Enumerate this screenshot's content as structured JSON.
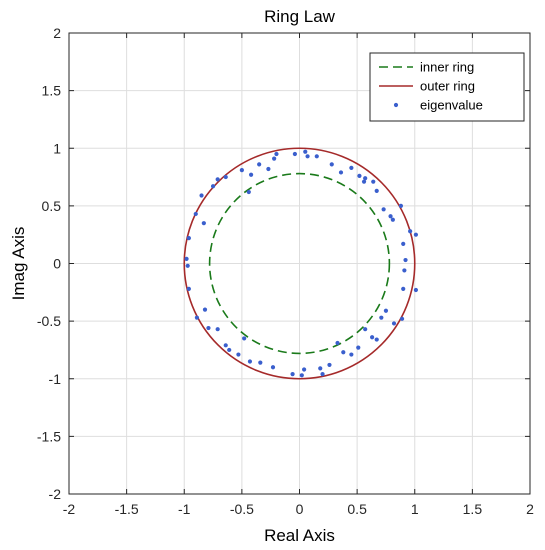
{
  "chart_data": {
    "type": "scatter",
    "title": "Ring Law",
    "xlabel": "Real Axis",
    "ylabel": "Imag Axis",
    "xlim": [
      -2,
      2
    ],
    "ylim": [
      -2,
      2
    ],
    "xticks": [
      -2,
      -1.5,
      -1,
      -0.5,
      0,
      0.5,
      1,
      1.5,
      2
    ],
    "yticks": [
      -2,
      -1.5,
      -1,
      -0.5,
      0,
      0.5,
      1,
      1.5,
      2
    ],
    "xtick_labels": [
      "-2",
      "-1.5",
      "-1",
      "-0.5",
      "0",
      "0.5",
      "1",
      "1.5",
      "2"
    ],
    "ytick_labels": [
      "-2",
      "-1.5",
      "-1",
      "-0.5",
      "0",
      "0.5",
      "1",
      "1.5",
      "2"
    ],
    "grid": true,
    "legend_position": "top-right",
    "series": [
      {
        "name": "inner ring",
        "kind": "circle",
        "radius": 0.78,
        "color": "#1a7a1a",
        "style": "dashed"
      },
      {
        "name": "outer ring",
        "kind": "circle",
        "radius": 1.0,
        "color": "#a52a2a",
        "style": "solid"
      },
      {
        "name": "eigenvalue",
        "kind": "points",
        "color": "#3a5fcd",
        "points": [
          [
            0.96,
            0.28
          ],
          [
            0.88,
            0.5
          ],
          [
            0.79,
            0.41
          ],
          [
            0.73,
            0.47
          ],
          [
            0.67,
            0.63
          ],
          [
            0.64,
            0.71
          ],
          [
            0.57,
            0.74
          ],
          [
            0.56,
            0.71
          ],
          [
            0.52,
            0.76
          ],
          [
            0.45,
            0.83
          ],
          [
            0.36,
            0.79
          ],
          [
            0.28,
            0.86
          ],
          [
            0.15,
            0.93
          ],
          [
            0.05,
            0.97
          ],
          [
            0.07,
            0.93
          ],
          [
            -0.04,
            0.95
          ],
          [
            -0.22,
            0.91
          ],
          [
            -0.27,
            0.82
          ],
          [
            -0.35,
            0.86
          ],
          [
            -0.42,
            0.77
          ],
          [
            -0.5,
            0.81
          ],
          [
            -0.44,
            0.62
          ],
          [
            -0.64,
            0.75
          ],
          [
            -0.71,
            0.73
          ],
          [
            -0.75,
            0.67
          ],
          [
            -0.85,
            0.59
          ],
          [
            -0.9,
            0.43
          ],
          [
            -0.83,
            0.35
          ],
          [
            -0.96,
            0.22
          ],
          [
            -0.98,
            0.04
          ],
          [
            -0.97,
            -0.02
          ],
          [
            -0.96,
            -0.22
          ],
          [
            -0.89,
            -0.47
          ],
          [
            -0.82,
            -0.4
          ],
          [
            -0.79,
            -0.56
          ],
          [
            -0.71,
            -0.57
          ],
          [
            -0.64,
            -0.71
          ],
          [
            -0.61,
            -0.75
          ],
          [
            -0.53,
            -0.79
          ],
          [
            -0.48,
            -0.65
          ],
          [
            -0.43,
            -0.85
          ],
          [
            -0.34,
            -0.86
          ],
          [
            -0.23,
            -0.9
          ],
          [
            -0.06,
            -0.96
          ],
          [
            0.02,
            -0.97
          ],
          [
            0.04,
            -0.92
          ],
          [
            0.18,
            -0.91
          ],
          [
            0.26,
            -0.88
          ],
          [
            0.33,
            -0.69
          ],
          [
            0.38,
            -0.77
          ],
          [
            0.45,
            -0.79
          ],
          [
            0.51,
            -0.73
          ],
          [
            0.57,
            -0.57
          ],
          [
            0.63,
            -0.64
          ],
          [
            0.67,
            -0.66
          ],
          [
            0.71,
            -0.47
          ],
          [
            0.75,
            -0.41
          ],
          [
            0.82,
            -0.52
          ],
          [
            0.89,
            -0.48
          ],
          [
            0.9,
            -0.22
          ],
          [
            0.91,
            -0.06
          ],
          [
            0.92,
            0.03
          ],
          [
            0.9,
            0.17
          ],
          [
            1.01,
            0.25
          ],
          [
            1.01,
            -0.23
          ],
          [
            0.81,
            0.38
          ],
          [
            -0.2,
            0.95
          ],
          [
            0.2,
            -0.96
          ]
        ]
      }
    ]
  }
}
